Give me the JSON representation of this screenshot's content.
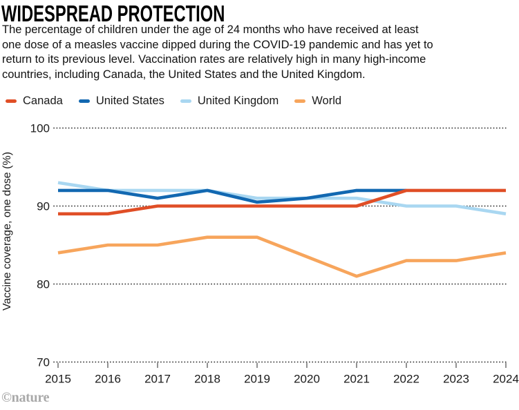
{
  "header": {
    "title": "WIDESPREAD PROTECTION",
    "description_lines": [
      "The percentage of children under the age of 24 months who have received at least",
      "one dose of a measles vaccine dipped during the COVID-19 pandemic and has yet to",
      "return to its previous level. Vaccination rates are relatively high in many high-income",
      "countries, including Canada, the United States and the United Kingdom."
    ]
  },
  "legend": {
    "items": [
      {
        "label": "Canada",
        "color": "#E04E26"
      },
      {
        "label": "United States",
        "color": "#1268B1"
      },
      {
        "label": "United Kingdom",
        "color": "#A9D7F1"
      },
      {
        "label": "World",
        "color": "#F7A55C"
      }
    ]
  },
  "chart_data": {
    "type": "line",
    "title": "WIDESPREAD PROTECTION",
    "x": [
      2015,
      2016,
      2017,
      2018,
      2019,
      2020,
      2021,
      2022,
      2023,
      2024
    ],
    "series": [
      {
        "name": "Canada",
        "color": "#E04E26",
        "values": [
          89,
          89,
          90,
          90,
          90,
          90,
          90,
          92,
          92,
          92
        ]
      },
      {
        "name": "United States",
        "color": "#1268B1",
        "values": [
          92,
          92,
          91,
          92,
          90.5,
          91,
          92,
          92,
          null,
          null
        ]
      },
      {
        "name": "United Kingdom",
        "color": "#A9D7F1",
        "values": [
          93,
          92,
          92,
          92,
          91,
          91,
          91,
          90,
          90,
          89
        ]
      },
      {
        "name": "World",
        "color": "#F7A55C",
        "values": [
          84,
          85,
          85,
          86,
          86,
          83.5,
          81,
          83,
          83,
          84
        ]
      }
    ],
    "xlabel": "",
    "ylabel": "Vaccine coverage, one dose (%)",
    "yticks": [
      100,
      90,
      80,
      70
    ],
    "ylim": [
      70,
      100
    ],
    "grid": "dotted-horizontal",
    "legend_position": "top"
  },
  "footer": {
    "credit": "©nature"
  }
}
